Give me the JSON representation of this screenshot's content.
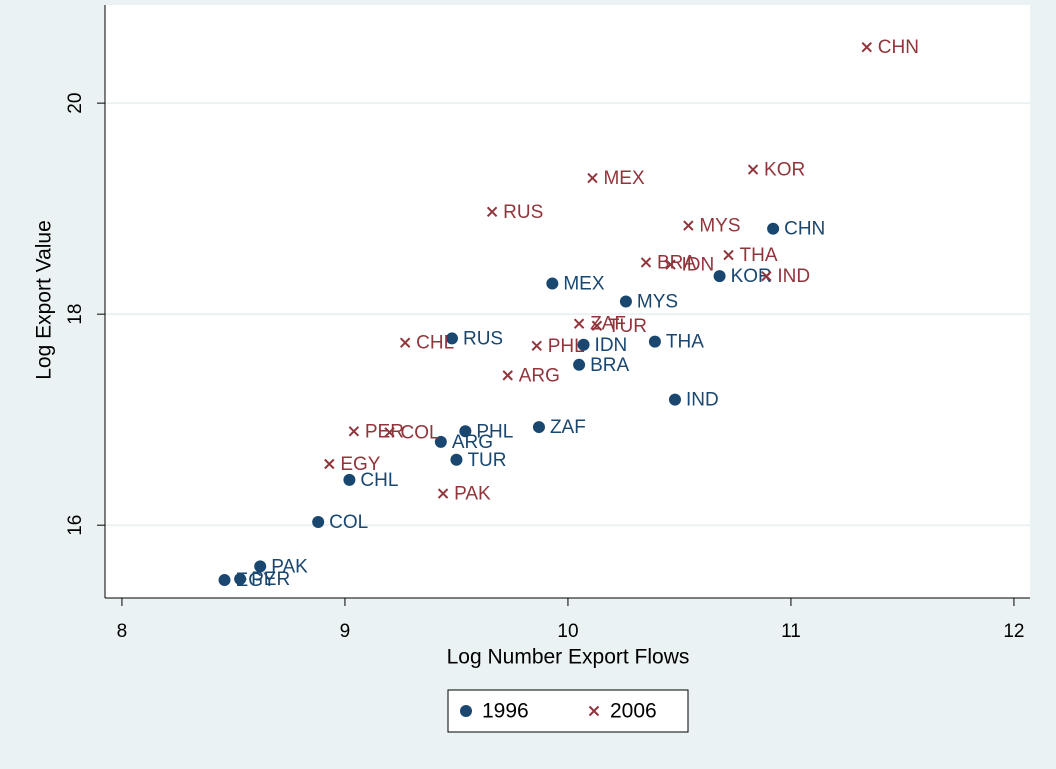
{
  "chart_data": {
    "type": "scatter",
    "xlabel": "Log Number Export Flows",
    "ylabel": "Log Export Value",
    "xlim": [
      7.924,
      12.072
    ],
    "ylim": [
      15.31,
      20.93
    ],
    "xticks": [
      8,
      9,
      10,
      11,
      12
    ],
    "yticks": [
      16,
      18,
      20
    ],
    "grid": true,
    "legend": "bottom",
    "series": [
      {
        "name": "1996",
        "color": "#1a476f",
        "marker": "circle",
        "labels": [
          "CHN",
          "KOR",
          "MEX",
          "MYS",
          "RUS",
          "IDN",
          "THA",
          "BRA",
          "IND",
          "ZAF",
          "PHL",
          "ARG",
          "TUR",
          "CHL",
          "COL",
          "PAK",
          "PER",
          "EGY"
        ],
        "x": [
          10.92,
          10.68,
          9.93,
          10.26,
          9.48,
          10.07,
          10.39,
          10.05,
          10.48,
          9.87,
          9.54,
          9.43,
          9.5,
          9.02,
          8.88,
          8.62,
          8.53,
          8.46
        ],
        "values": [
          18.81,
          18.36,
          18.29,
          18.12,
          17.77,
          17.71,
          17.74,
          17.52,
          17.19,
          16.93,
          16.89,
          16.79,
          16.62,
          16.43,
          16.03,
          15.61,
          15.49,
          15.48
        ]
      },
      {
        "name": "2006",
        "color": "#90353b",
        "marker": "x",
        "labels": [
          "CHN",
          "KOR",
          "MEX",
          "RUS",
          "MYS",
          "THA",
          "BRA",
          "IDN",
          "IND",
          "ZAF",
          "TUR",
          "CHL",
          "PHL",
          "ARG",
          "PER",
          "COL",
          "EGY",
          "PAK"
        ],
        "x": [
          11.34,
          10.83,
          10.11,
          9.66,
          10.54,
          10.72,
          10.35,
          10.46,
          10.89,
          10.05,
          10.13,
          9.27,
          9.86,
          9.73,
          9.04,
          9.2,
          8.93,
          9.44
        ],
        "values": [
          20.53,
          19.37,
          19.29,
          18.97,
          18.84,
          18.56,
          18.49,
          18.47,
          18.36,
          17.91,
          17.89,
          17.73,
          17.7,
          17.42,
          16.89,
          16.88,
          16.58,
          16.3
        ]
      }
    ]
  }
}
